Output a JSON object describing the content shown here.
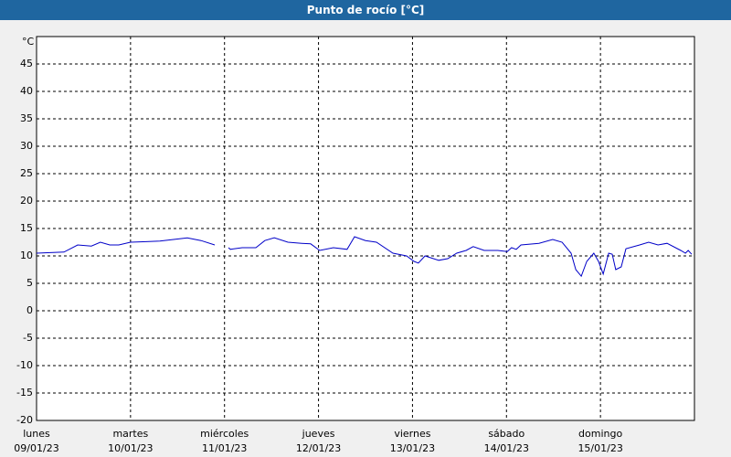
{
  "chart_data": {
    "type": "line",
    "title": "Punto de rocío [°C]",
    "ylabel": "°C",
    "xlim": [
      0,
      168
    ],
    "xticks": [
      {
        "value": 0,
        "label": "lunes"
      },
      {
        "value": 24,
        "label": "martes"
      },
      {
        "value": 48,
        "label": "miércoles"
      },
      {
        "value": 72,
        "label": "jueves"
      },
      {
        "value": 96,
        "label": "viernes"
      },
      {
        "value": 120,
        "label": "sábado"
      },
      {
        "value": 144,
        "label": "domingo"
      }
    ],
    "xtick_dates": [
      "09/01/23",
      "10/01/23",
      "11/01/23",
      "12/01/23",
      "13/01/23",
      "14/01/23",
      "15/01/23"
    ],
    "ylim": [
      -20,
      50
    ],
    "yticks": [
      -20,
      -15,
      -10,
      -5,
      0,
      5,
      10,
      15,
      20,
      25,
      30,
      35,
      40,
      45
    ],
    "grid": true,
    "series": [
      {
        "color": "#0000c8",
        "x": [
          0,
          3.5,
          7,
          10.5,
          14,
          16.3,
          18.7,
          21,
          24,
          28,
          31.5,
          35,
          38.5,
          42,
          45.5,
          47,
          49,
          49.5,
          52.5,
          56,
          58.3,
          60.7,
          64.2,
          67.7,
          70,
          72.3,
          75.8,
          79.3,
          81.2,
          84,
          86.8,
          91,
          94.5,
          96.4,
          97.5,
          99.2,
          102.7,
          105,
          107.3,
          109.7,
          111.5,
          114.3,
          117.8,
          120.2,
          121.3,
          122.5,
          123.7,
          128.3,
          131.8,
          134.2,
          136.5,
          137.7,
          139.1,
          140.5,
          142.3,
          143.5,
          144.7,
          146.1,
          147,
          147.9,
          149.3,
          150.5,
          154,
          156.3,
          158.7,
          161,
          164.5,
          165.7,
          166.4,
          167.3
        ],
        "values": [
          10.5,
          10.6,
          10.7,
          12,
          11.8,
          12.5,
          12,
          12,
          12.5,
          12.6,
          12.7,
          13,
          13.3,
          12.8,
          12,
          null,
          11.5,
          11.2,
          11.5,
          11.5,
          12.8,
          13.3,
          12.5,
          12.3,
          12.2,
          11,
          11.5,
          11.2,
          13.5,
          12.8,
          12.5,
          10.5,
          10,
          9,
          8.7,
          10,
          9.2,
          9.5,
          10.5,
          11,
          11.7,
          11,
          11,
          10.8,
          11.5,
          11.2,
          12,
          12.3,
          13,
          12.5,
          10.5,
          7.5,
          6.3,
          9,
          10.5,
          9,
          6.7,
          10.5,
          10.3,
          7.5,
          8,
          11.3,
          12,
          12.5,
          12,
          12.3,
          11,
          10.5,
          11,
          10.3
        ]
      }
    ]
  }
}
